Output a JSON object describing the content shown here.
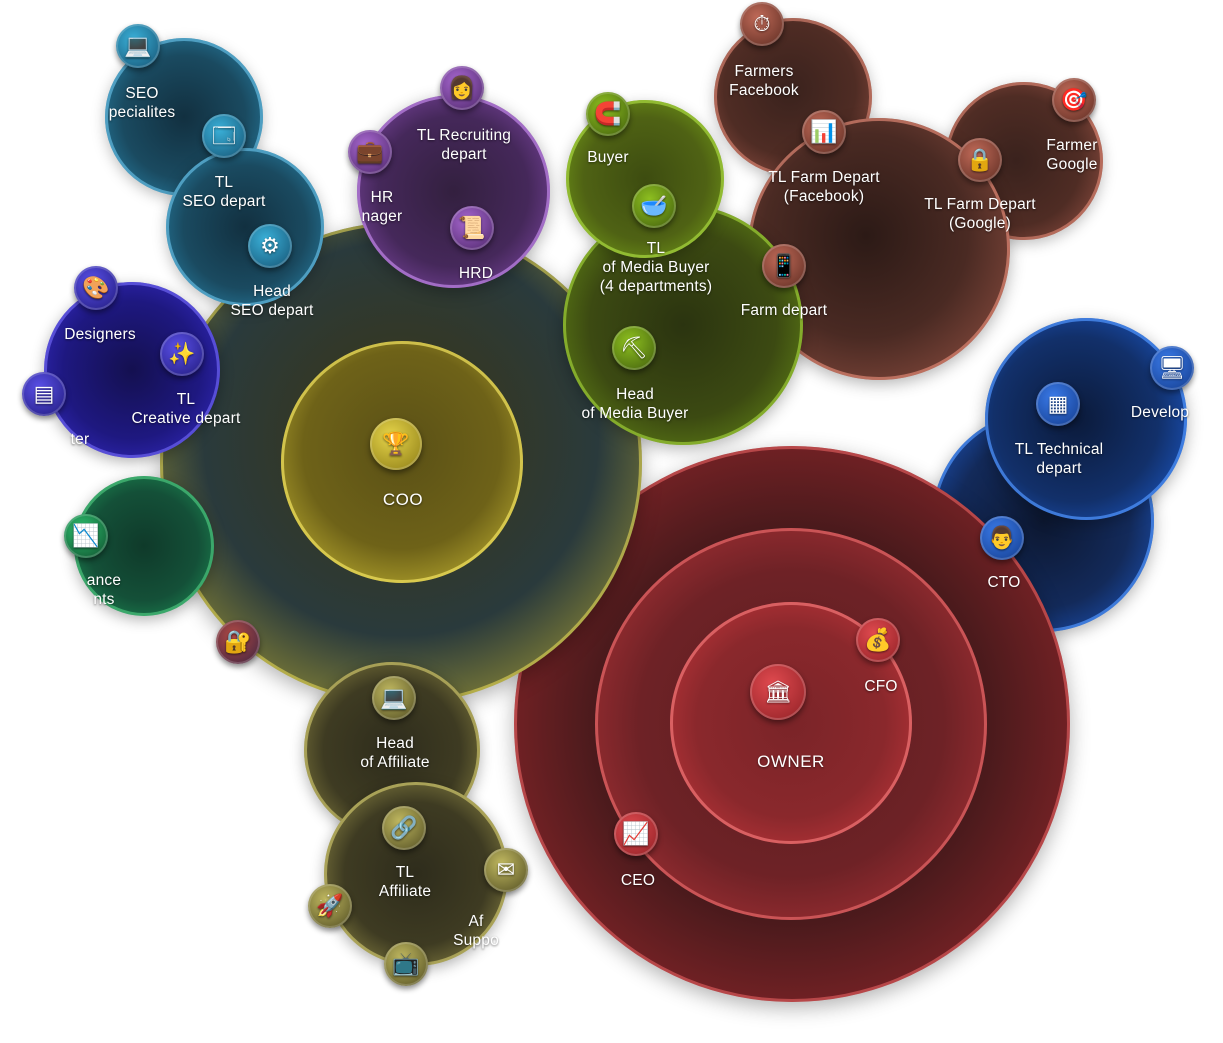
{
  "labels": {
    "owner": "OWNER",
    "cfo": "CFO",
    "ceo": "CEO",
    "coo": "COO",
    "cto": "CTO",
    "tl_technical": "TL Technical\ndepart",
    "developers": "Develop",
    "head_media_buyer": "Head\nof Media Buyer",
    "tl_media_buyer": "TL\nof Media Buyer\n(4 departments)",
    "buyer": "Buyer",
    "farm_depart": "Farm depart",
    "tl_farm_facebook": "TL Farm Depart\n(Facebook)",
    "tl_farm_google": "TL Farm Depart\n(Google)",
    "farmers_facebook": "Farmers\nFacebook",
    "farmers_google": "Farmer\nGoogle",
    "hrd": "HRD",
    "hr_manager": "HR\nnager",
    "tl_recruiting": "TL Recruiting\ndepart",
    "head_seo": "Head\nSEO depart",
    "tl_seo": "TL\nSEO depart",
    "seo_specialists": "SEO\npecialites",
    "tl_creative": "TL\nCreative depart",
    "designers": "Designers",
    "creative_cut": "ter",
    "finance": "ance\nnts",
    "head_affiliate": "Head\nof Affiliate",
    "tl_affiliate": "TL\nAffiliate",
    "affiliate_support": "Af\nSuppo"
  },
  "colors": {
    "owner": "#c7353a",
    "coo": "#d6c436",
    "cto": "#1e5fd6",
    "media_buyer": "#6f9a16",
    "farm": "#a3584a",
    "hr": "#8e4fb8",
    "seo": "#2b8fb8",
    "creative": "#3a2fd4",
    "finance": "#1e9a5a",
    "affiliate": "#a8a050"
  },
  "icons": {
    "owner": "bank-building-icon",
    "cfo": "coin-hand-icon",
    "ceo": "growth-chart-icon",
    "coo": "trophy-icon",
    "cto": "engineer-icon",
    "tl_technical": "server-code-icon",
    "developers": "monitor-code-icon",
    "head_media_buyer": "pickaxe-icon",
    "tl_media_buyer": "coin-bowl-icon",
    "buyer": "magnet-icon",
    "farm_depart": "phone-coins-icon",
    "tl_farm_facebook": "presentation-icon",
    "tl_farm_google": "coin-lock-icon",
    "farmers_facebook": "coin-stopwatch-icon",
    "farmers_google": "target-icon",
    "hrd": "certificate-icon",
    "hr_manager": "briefcase-icon",
    "tl_recruiting": "recruiter-icon",
    "head_seo": "seo-gear-icon",
    "tl_seo": "browser-window-icon",
    "seo_specialists": "code-monitor-icon",
    "tl_creative": "magic-wand-icon",
    "designers": "design-laptop-icon",
    "creative_cut": "layout-window-icon",
    "finance": "candlestick-chart-icon",
    "security": "padlock-icon",
    "head_affiliate": "laptop-stats-icon",
    "tl_affiliate": "network-icon",
    "affiliate_support": "mail-icon",
    "rocket": "rocket-icon",
    "video": "video-monitor-icon"
  }
}
